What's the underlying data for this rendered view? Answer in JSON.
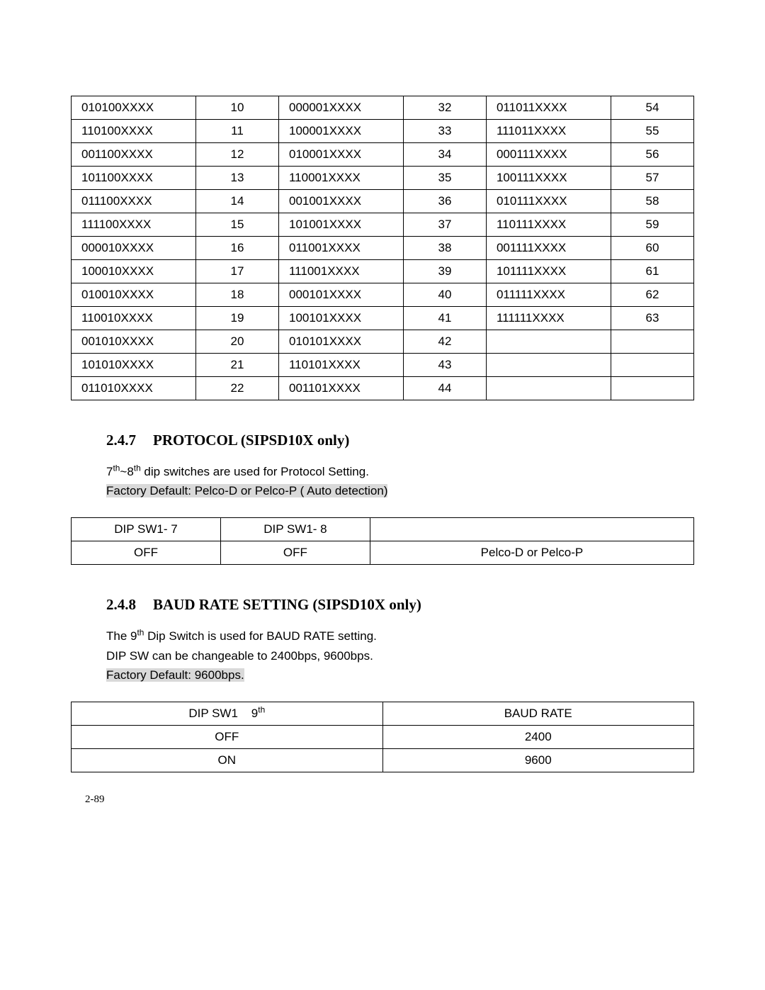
{
  "address_table": {
    "rows": [
      [
        "010100XXXX",
        "10",
        "000001XXXX",
        "32",
        "011011XXXX",
        "54"
      ],
      [
        "110100XXXX",
        "11",
        "100001XXXX",
        "33",
        "111011XXXX",
        "55"
      ],
      [
        "001100XXXX",
        "12",
        "010001XXXX",
        "34",
        "000111XXXX",
        "56"
      ],
      [
        "101100XXXX",
        "13",
        "110001XXXX",
        "35",
        "100111XXXX",
        "57"
      ],
      [
        "011100XXXX",
        "14",
        "001001XXXX",
        "36",
        "010111XXXX",
        "58"
      ],
      [
        "111100XXXX",
        "15",
        "101001XXXX",
        "37",
        "110111XXXX",
        "59"
      ],
      [
        "000010XXXX",
        "16",
        "011001XXXX",
        "38",
        "001111XXXX",
        "60"
      ],
      [
        "100010XXXX",
        "17",
        "111001XXXX",
        "39",
        "101111XXXX",
        "61"
      ],
      [
        "010010XXXX",
        "18",
        "000101XXXX",
        "40",
        "011111XXXX",
        "62"
      ],
      [
        "110010XXXX",
        "19",
        "100101XXXX",
        "41",
        "111111XXXX",
        "63"
      ],
      [
        "001010XXXX",
        "20",
        "010101XXXX",
        "42",
        "",
        ""
      ],
      [
        "101010XXXX",
        "21",
        "110101XXXX",
        "43",
        "",
        ""
      ],
      [
        "011010XXXX",
        "22",
        "001101XXXX",
        "44",
        "",
        ""
      ]
    ]
  },
  "section_247": {
    "num": "2.4.7",
    "title": "PROTOCOL (SIPSD10X only)"
  },
  "protocol_text": {
    "line1_prefix": "7",
    "line1_sup": "th",
    "line1_mid": "~8",
    "line1_sup2": "th",
    "line1_rest": " dip switches are used for Protocol Setting.",
    "line2": "Factory Default: Pelco-D or Pelco-P ( Auto detection)"
  },
  "protocol_table": {
    "headers": [
      "DIP SW1- 7",
      "DIP SW1- 8",
      ""
    ],
    "row": [
      "OFF",
      "OFF",
      "Pelco-D or Pelco-P"
    ]
  },
  "section_248": {
    "num": "2.4.8",
    "title": "BAUD RATE SETTING (SIPSD10X only)"
  },
  "baud_text": {
    "line1_a": "The 9",
    "line1_sup": "th",
    "line1_b": " Dip Switch is used for BAUD RATE setting.",
    "line2": "DIP SW can be changeable to 2400bps, 9600bps.",
    "line3": "Factory Default: 9600bps."
  },
  "baud_table": {
    "h1_a": "DIP SW1    9",
    "h1_sup": "th",
    "h2": "BAUD RATE",
    "rows": [
      [
        "OFF",
        "2400"
      ],
      [
        "ON",
        "9600"
      ]
    ]
  },
  "footer": "2-89"
}
